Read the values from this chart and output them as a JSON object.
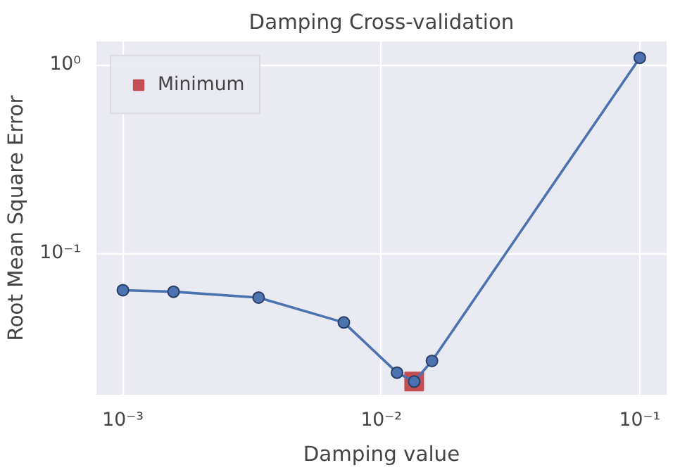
{
  "chart_data": {
    "type": "line",
    "title": "Damping Cross-validation",
    "xlabel": "Damping value",
    "ylabel": "Root Mean Square Error",
    "log": "xy",
    "grid": true,
    "legend": "top left",
    "marker": "circle",
    "line_style": "solid",
    "xlim": [
      0.00079,
      0.127
    ],
    "ylim": [
      0.0178,
      1.33
    ],
    "xticks": [
      {
        "value": 0.001,
        "label": "10⁻³"
      },
      {
        "value": 0.01,
        "label": "10⁻²"
      },
      {
        "value": 0.1,
        "label": "10⁻¹"
      }
    ],
    "yticks": [
      {
        "value": 0.1,
        "label": "10⁻¹"
      },
      {
        "value": 1,
        "label": "10⁰"
      }
    ],
    "series": [
      {
        "color": "#4c72b0",
        "x": [
          0.001,
          0.00157,
          0.00335,
          0.00716,
          0.0115,
          0.0134,
          0.0157,
          0.1
        ],
        "values": [
          0.0638,
          0.0626,
          0.0583,
          0.043,
          0.0233,
          0.0209,
          0.0269,
          1.09
        ]
      },
      {
        "type": "scatter",
        "name": "Minimum",
        "color": "#c44e52",
        "marker": "square",
        "x": [
          0.0134
        ],
        "values": [
          0.0209
        ]
      }
    ]
  }
}
